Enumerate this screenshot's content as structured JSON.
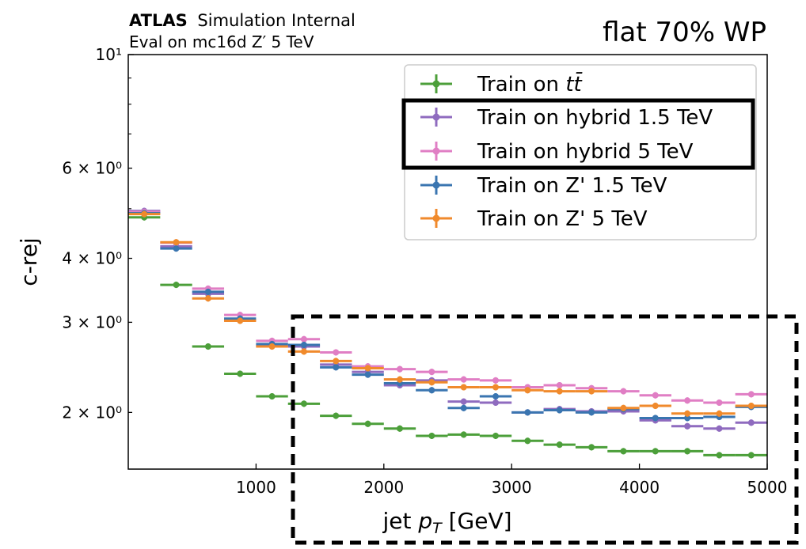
{
  "header": {
    "atlas_bold": "ATLAS",
    "atlas_rest": "Simulation Internal",
    "eval_label": "Eval on mc16d Z′ 5 TeV",
    "wp_label": "flat 70% WP"
  },
  "chart_data": {
    "type": "scatter",
    "title": "flat 70% WP",
    "xlabel": "jet p_T [GeV]",
    "ylabel": "c-rej",
    "xlim": [
      0,
      5000
    ],
    "ylim": [
      1.55,
      10
    ],
    "yscale": "log",
    "x_ticks": [
      "1000",
      "2000",
      "3000",
      "4000",
      "5000"
    ],
    "y_ticks": [
      {
        "value": 10,
        "label": "10¹"
      },
      {
        "value": 6,
        "label": "6 × 10⁰"
      },
      {
        "value": 4,
        "label": "4 × 10⁰"
      },
      {
        "value": 3,
        "label": "3 × 10⁰"
      },
      {
        "value": 2,
        "label": "2 × 10⁰"
      }
    ],
    "legend_position": "top-right",
    "x": [
      125,
      375,
      625,
      875,
      1125,
      1375,
      1625,
      1875,
      2125,
      2375,
      2625,
      2875,
      3125,
      3375,
      3625,
      3875,
      4125,
      4375,
      4625,
      4875
    ],
    "x_half_width": 125,
    "series": [
      {
        "name": "Train on tt̄",
        "color": "#4c9f3a",
        "values": [
          4.81,
          3.55,
          2.69,
          2.38,
          2.15,
          2.08,
          1.97,
          1.9,
          1.86,
          1.8,
          1.81,
          1.8,
          1.76,
          1.73,
          1.71,
          1.68,
          1.68,
          1.68,
          1.65,
          1.65
        ]
      },
      {
        "name": "Train on hybrid 1.5 TeV",
        "color": "#8f6bbf",
        "values": [
          4.95,
          4.22,
          3.41,
          3.03,
          2.7,
          2.69,
          2.48,
          2.4,
          2.26,
          2.31,
          2.1,
          2.09,
          2.0,
          2.03,
          2.01,
          2.01,
          1.93,
          1.88,
          1.86,
          1.91
        ]
      },
      {
        "name": "Train on hybrid 5 TeV",
        "color": "#e07ec4",
        "values": [
          4.93,
          4.29,
          3.49,
          3.1,
          2.76,
          2.78,
          2.62,
          2.46,
          2.43,
          2.4,
          2.32,
          2.31,
          2.24,
          2.26,
          2.23,
          2.2,
          2.16,
          2.11,
          2.09,
          2.17
        ]
      },
      {
        "name": "Train on Z' 1.5 TeV",
        "color": "#3a75b0",
        "values": [
          4.9,
          4.18,
          3.44,
          3.05,
          2.72,
          2.71,
          2.45,
          2.37,
          2.28,
          2.21,
          2.04,
          2.15,
          2.0,
          2.02,
          2.0,
          2.03,
          1.95,
          1.95,
          1.96,
          2.05
        ]
      },
      {
        "name": "Train on Z' 5 TeV",
        "color": "#f08a2c",
        "values": [
          4.88,
          4.3,
          3.34,
          3.02,
          2.69,
          2.63,
          2.52,
          2.44,
          2.32,
          2.29,
          2.24,
          2.24,
          2.21,
          2.2,
          2.2,
          2.04,
          2.06,
          1.99,
          1.99,
          2.06
        ]
      }
    ]
  }
}
